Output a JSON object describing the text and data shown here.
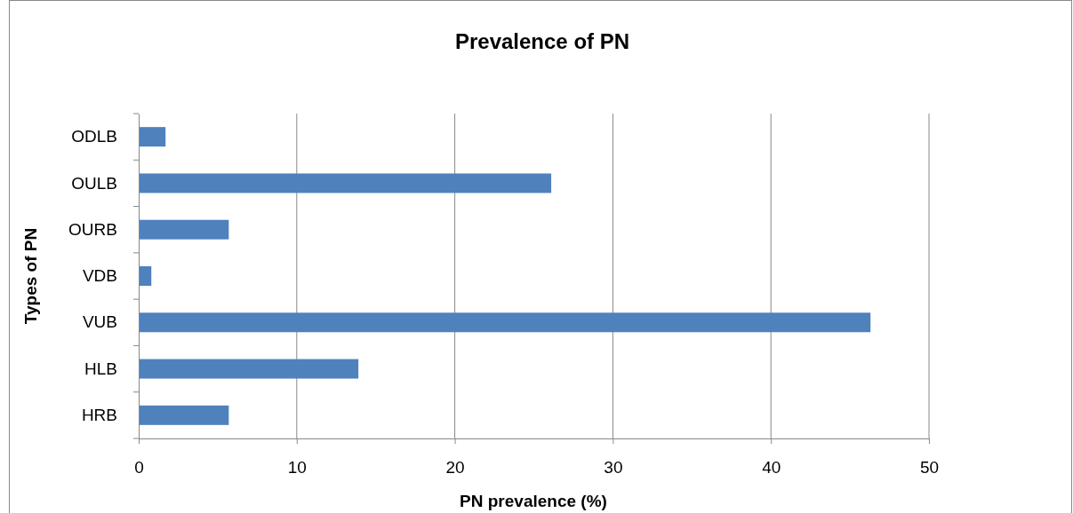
{
  "chart_data": {
    "type": "bar",
    "orientation": "horizontal",
    "title": "Prevalence of PN",
    "xlabel": "PN prevalence (%)",
    "ylabel": "Types of PN",
    "categories": [
      "ODLB",
      "OULB",
      "OURB",
      "VDB",
      "VUB",
      "HLB",
      "HRB"
    ],
    "values": [
      1.7,
      26.1,
      5.7,
      0.8,
      46.3,
      13.9,
      5.7
    ],
    "color": "#4f81bd",
    "xlim": [
      0,
      50
    ],
    "xticks": [
      0,
      10,
      20,
      30,
      40,
      50
    ],
    "grid": "x"
  }
}
